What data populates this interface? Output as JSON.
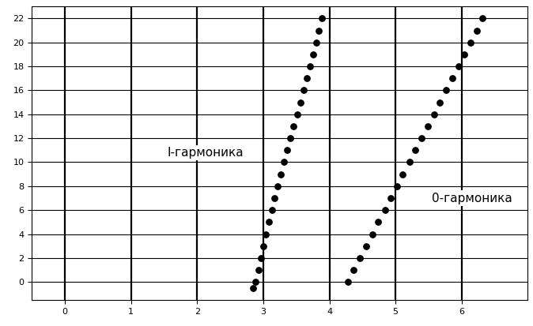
{
  "chart_data": {
    "type": "scatter",
    "xlim": [
      -0.5,
      7.0
    ],
    "ylim": [
      -1.5,
      23.0
    ],
    "xticks": [
      0,
      1,
      2,
      3,
      4,
      5,
      6
    ],
    "yticks": [
      0,
      2,
      4,
      6,
      8,
      10,
      12,
      14,
      16,
      18,
      20,
      22
    ],
    "grid": true,
    "annotations": [
      "I-гармоника",
      "0-гармоника"
    ],
    "series": [
      {
        "name": "I-гармоника",
        "color": "#000000",
        "marker": "circle",
        "x": [
          2.84,
          2.88,
          2.93,
          2.97,
          3.0,
          3.04,
          3.08,
          3.13,
          3.17,
          3.21,
          3.26,
          3.31,
          3.36,
          3.41,
          3.46,
          3.51,
          3.56,
          3.61,
          3.66,
          3.71,
          3.75,
          3.8,
          3.84,
          3.89
        ],
        "values": [
          -0.5,
          0,
          1,
          2,
          3,
          4,
          5,
          6,
          7,
          8,
          9,
          10,
          11,
          12,
          13,
          14,
          15,
          16,
          17,
          18,
          19,
          20,
          21,
          22
        ]
      },
      {
        "name": "0-гармоника",
        "color": "#000000",
        "marker": "circle",
        "x": [
          4.28,
          4.37,
          4.46,
          4.56,
          4.65,
          4.74,
          4.84,
          4.93,
          5.02,
          5.11,
          5.21,
          5.3,
          5.39,
          5.49,
          5.58,
          5.67,
          5.77,
          5.86,
          5.95,
          6.04,
          6.14,
          6.23,
          6.32
        ],
        "values": [
          0,
          1,
          2,
          3,
          4,
          5,
          6,
          7,
          8,
          9,
          10,
          11,
          12,
          13,
          14,
          15,
          16,
          17,
          18,
          19,
          20,
          21,
          22
        ]
      }
    ]
  }
}
